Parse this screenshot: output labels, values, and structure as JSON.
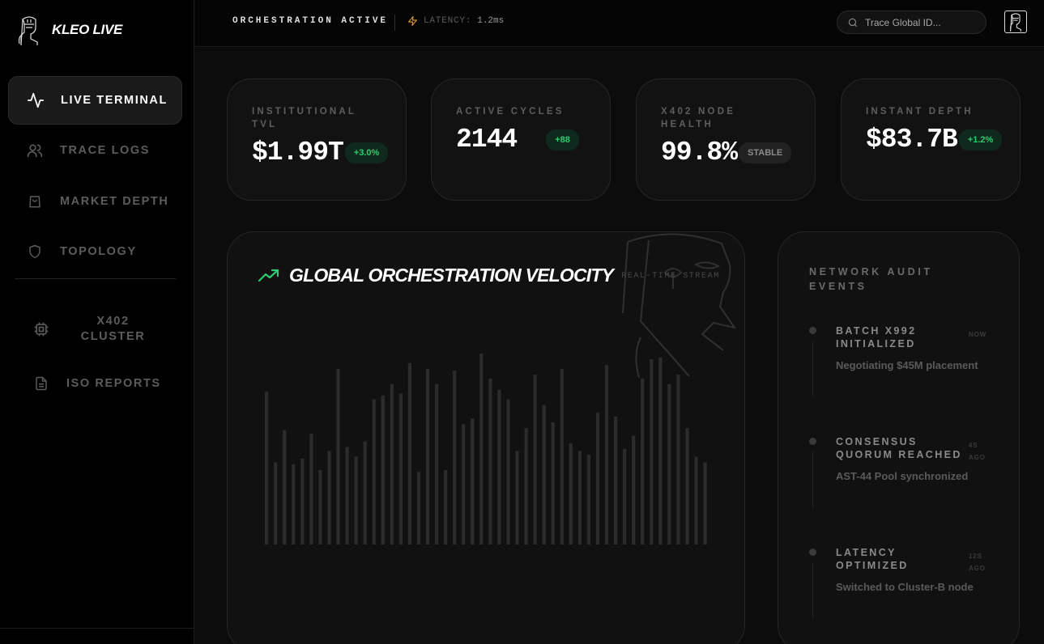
{
  "brand": {
    "name": "KLEO LIVE"
  },
  "sidebar": {
    "items": [
      {
        "label": "LIVE TERMINAL",
        "icon": "activity-icon",
        "active": true
      },
      {
        "label": "TRACE LOGS",
        "icon": "users-icon"
      },
      {
        "label": "MARKET DEPTH",
        "icon": "shopping-bag-icon"
      },
      {
        "label": "TOPOLOGY",
        "icon": "shield-icon"
      }
    ],
    "secondary": [
      {
        "label": "X402\nCLUSTER",
        "icon": "cpu-icon"
      },
      {
        "label": "ISO REPORTS",
        "icon": "file-text-icon"
      }
    ]
  },
  "topbar": {
    "status": "ORCHESTRATION ACTIVE",
    "latency_label": "LATENCY:",
    "latency_value": "1.2ms",
    "search_placeholder": "Trace Global ID..."
  },
  "stats": [
    {
      "title": "INSTITUTIONAL TVL",
      "value": "$1.99T",
      "badge": "+3.0%",
      "badge_kind": "green"
    },
    {
      "title": "ACTIVE CYCLES",
      "value": "2144",
      "badge": "+88",
      "badge_kind": "green"
    },
    {
      "title": "X402 NODE HEALTH",
      "value": "99.8%",
      "badge": "STABLE",
      "badge_kind": "gray"
    },
    {
      "title": "INSTANT DEPTH",
      "value": "$83.7B",
      "badge": "+1.2%",
      "badge_kind": "green"
    }
  ],
  "velocity": {
    "title": "GLOBAL ORCHESTRATION VELOCITY",
    "subtitle": "REAL-TIME STREAM"
  },
  "audit": {
    "title": "NETWORK AUDIT EVENTS",
    "events": [
      {
        "title": "BATCH X992 INITIALIZED",
        "when": "NOW",
        "desc": "Negotiating $45M placement"
      },
      {
        "title": "CONSENSUS QUORUM REACHED",
        "when": "4S AGO",
        "desc": "AST-44 Pool synchronized"
      },
      {
        "title": "LATENCY OPTIMIZED",
        "when": "12S AGO",
        "desc": "Switched to Cluster-B node"
      }
    ]
  },
  "colors": {
    "accent_green": "#2ecc71",
    "lightning": "#e0a030",
    "bar": "#2c2c2c"
  },
  "chart_data": {
    "type": "bar",
    "values": [
      80,
      43,
      60,
      42,
      45,
      58,
      39,
      49,
      92,
      51,
      46,
      54,
      76,
      78,
      84,
      79,
      95,
      38,
      92,
      84,
      39,
      91,
      63,
      66,
      100,
      87,
      81,
      76,
      49,
      61,
      89,
      73,
      64,
      92,
      53,
      49,
      47,
      69,
      94,
      67,
      50,
      57,
      87,
      97,
      98,
      84,
      89,
      61,
      46,
      43
    ],
    "ylim": [
      0,
      100
    ]
  }
}
